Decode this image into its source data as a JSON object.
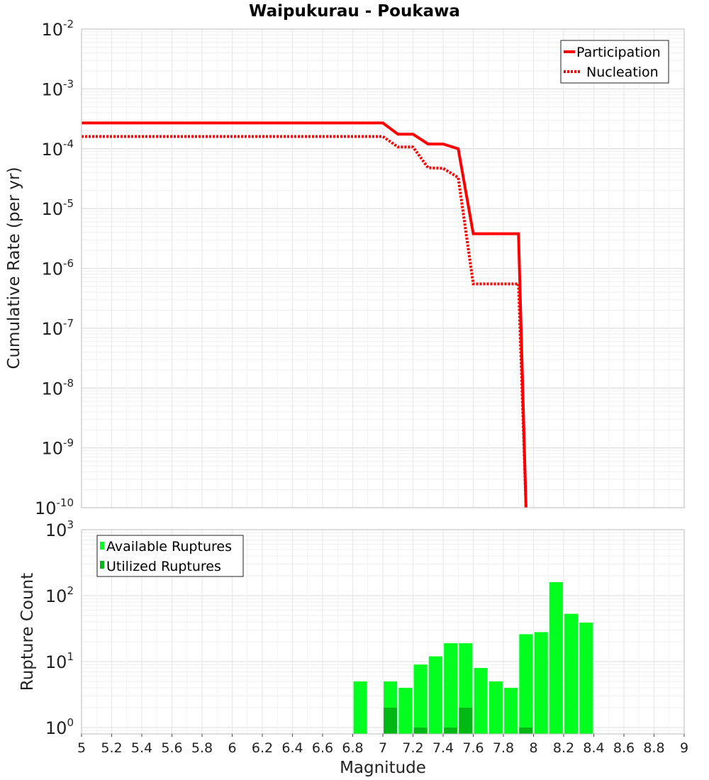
{
  "chart_data": [
    {
      "type": "line",
      "title": "Waipukurau - Poukawa",
      "ylabel": "Cumulative Rate (per yr)",
      "xlim": [
        5,
        9
      ],
      "yscale": "log",
      "ylim": [
        1e-10,
        0.01
      ],
      "y_tick_labels": [
        "10-10",
        "10-9",
        "10-8",
        "10-7",
        "10-6",
        "10-5",
        "10-4",
        "10-3",
        "10-2"
      ],
      "legend": {
        "placement": "top-right"
      },
      "grid": true,
      "series": [
        {
          "name": "Participation",
          "color": "#ff0000",
          "style": "solid",
          "points": [
            [
              5.0,
              0.00027
            ],
            [
              7.0,
              0.00027
            ],
            [
              7.1,
              0.000175
            ],
            [
              7.2,
              0.000175
            ],
            [
              7.3,
              0.00012
            ],
            [
              7.4,
              0.00012
            ],
            [
              7.5,
              0.0001
            ],
            [
              7.6,
              3.8e-06
            ],
            [
              7.9,
              3.8e-06
            ],
            [
              7.95,
              1e-10
            ]
          ]
        },
        {
          "name": "Nucleation",
          "color": "#ff0000",
          "style": "dotted",
          "points": [
            [
              5.0,
              0.00016
            ],
            [
              7.0,
              0.00016
            ],
            [
              7.1,
              0.000107
            ],
            [
              7.2,
              0.000107
            ],
            [
              7.3,
              4.8e-05
            ],
            [
              7.4,
              4.7e-05
            ],
            [
              7.5,
              3.3e-05
            ],
            [
              7.6,
              5.5e-07
            ],
            [
              7.9,
              5.5e-07
            ],
            [
              7.95,
              1e-10
            ]
          ]
        }
      ]
    },
    {
      "type": "bar",
      "ylabel": "Rupture Count",
      "xlabel": "Magnitude",
      "xlim": [
        5,
        9
      ],
      "x_ticks": [
        "5",
        "5.2",
        "5.4",
        "5.6",
        "5.8",
        "6",
        "6.2",
        "6.4",
        "6.6",
        "6.8",
        "7",
        "7.2",
        "7.4",
        "7.6",
        "7.8",
        "8",
        "8.2",
        "8.4",
        "8.6",
        "8.8",
        "9"
      ],
      "yscale": "log",
      "ylim": [
        0.8,
        1000
      ],
      "y_tick_labels": [
        "100",
        "101",
        "102",
        "103"
      ],
      "legend": {
        "placement": "top-left"
      },
      "grid": true,
      "bar_width": 0.09,
      "series": [
        {
          "name": "Available Ruptures",
          "color": "#00ff1e",
          "x": [
            6.85,
            7.05,
            7.15,
            7.25,
            7.35,
            7.45,
            7.55,
            7.65,
            7.75,
            7.85,
            7.95,
            8.05,
            8.15,
            8.25,
            8.35
          ],
          "values": [
            5,
            5,
            4,
            9,
            12,
            19,
            19,
            8,
            5,
            4,
            26,
            28,
            160,
            53,
            39
          ]
        },
        {
          "name": "Utilized Ruptures",
          "color": "#00b814",
          "x": [
            7.05,
            7.25,
            7.45,
            7.55,
            7.95
          ],
          "values": [
            2,
            1,
            1,
            2,
            1
          ]
        }
      ]
    }
  ]
}
